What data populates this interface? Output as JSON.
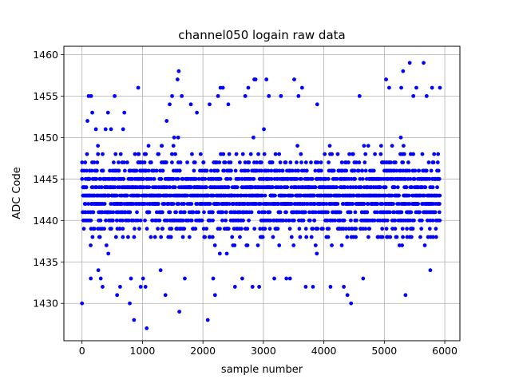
{
  "chart_data": {
    "type": "scatter",
    "title": "channel050 logain raw data",
    "xlabel": "sample number",
    "ylabel": "ADC Code",
    "xlim": [
      -300,
      6250
    ],
    "ylim": [
      1425.5,
      1461
    ],
    "xticks": [
      0,
      1000,
      2000,
      3000,
      4000,
      5000,
      6000
    ],
    "yticks": [
      1430,
      1435,
      1440,
      1445,
      1450,
      1455,
      1460
    ],
    "grid": true,
    "marker_color": "#0000ff",
    "series": [
      {
        "name": "",
        "n_points": 5920,
        "x_range": [
          0,
          5919
        ],
        "core_y_range": [
          1436,
          1450
        ],
        "points": [
          {
            "x": 0,
            "y": 1430
          },
          {
            "x": 30,
            "y": 1439
          },
          {
            "x": 90,
            "y": 1452
          },
          {
            "x": 110,
            "y": 1455
          },
          {
            "x": 145,
            "y": 1433
          },
          {
            "x": 150,
            "y": 1455
          },
          {
            "x": 170,
            "y": 1453
          },
          {
            "x": 230,
            "y": 1451
          },
          {
            "x": 270,
            "y": 1434
          },
          {
            "x": 310,
            "y": 1433
          },
          {
            "x": 340,
            "y": 1432
          },
          {
            "x": 390,
            "y": 1451
          },
          {
            "x": 430,
            "y": 1453
          },
          {
            "x": 480,
            "y": 1451
          },
          {
            "x": 540,
            "y": 1455
          },
          {
            "x": 580,
            "y": 1431
          },
          {
            "x": 630,
            "y": 1432
          },
          {
            "x": 680,
            "y": 1451
          },
          {
            "x": 700,
            "y": 1453
          },
          {
            "x": 790,
            "y": 1430
          },
          {
            "x": 810,
            "y": 1433
          },
          {
            "x": 860,
            "y": 1428
          },
          {
            "x": 930,
            "y": 1456
          },
          {
            "x": 970,
            "y": 1432
          },
          {
            "x": 1010,
            "y": 1433
          },
          {
            "x": 1050,
            "y": 1432
          },
          {
            "x": 1070,
            "y": 1427
          },
          {
            "x": 1100,
            "y": 1449
          },
          {
            "x": 1300,
            "y": 1434
          },
          {
            "x": 1380,
            "y": 1431
          },
          {
            "x": 1400,
            "y": 1452
          },
          {
            "x": 1450,
            "y": 1454
          },
          {
            "x": 1490,
            "y": 1455
          },
          {
            "x": 1580,
            "y": 1457
          },
          {
            "x": 1600,
            "y": 1458
          },
          {
            "x": 1610,
            "y": 1429
          },
          {
            "x": 1650,
            "y": 1455
          },
          {
            "x": 1700,
            "y": 1433
          },
          {
            "x": 1800,
            "y": 1454
          },
          {
            "x": 1900,
            "y": 1453
          },
          {
            "x": 2080,
            "y": 1428
          },
          {
            "x": 2110,
            "y": 1454
          },
          {
            "x": 2170,
            "y": 1433
          },
          {
            "x": 2200,
            "y": 1431
          },
          {
            "x": 2250,
            "y": 1455
          },
          {
            "x": 2290,
            "y": 1456
          },
          {
            "x": 2330,
            "y": 1456
          },
          {
            "x": 2420,
            "y": 1454
          },
          {
            "x": 2530,
            "y": 1432
          },
          {
            "x": 2650,
            "y": 1433
          },
          {
            "x": 2700,
            "y": 1455
          },
          {
            "x": 2750,
            "y": 1456
          },
          {
            "x": 2820,
            "y": 1432
          },
          {
            "x": 2850,
            "y": 1457
          },
          {
            "x": 2870,
            "y": 1457
          },
          {
            "x": 2930,
            "y": 1432
          },
          {
            "x": 3050,
            "y": 1457
          },
          {
            "x": 3090,
            "y": 1455
          },
          {
            "x": 3180,
            "y": 1433
          },
          {
            "x": 3290,
            "y": 1455
          },
          {
            "x": 3380,
            "y": 1433
          },
          {
            "x": 3440,
            "y": 1433
          },
          {
            "x": 3510,
            "y": 1457
          },
          {
            "x": 3580,
            "y": 1455
          },
          {
            "x": 3640,
            "y": 1456
          },
          {
            "x": 3700,
            "y": 1432
          },
          {
            "x": 3820,
            "y": 1432
          },
          {
            "x": 3890,
            "y": 1454
          },
          {
            "x": 4110,
            "y": 1432
          },
          {
            "x": 4330,
            "y": 1432
          },
          {
            "x": 4390,
            "y": 1431
          },
          {
            "x": 4450,
            "y": 1430
          },
          {
            "x": 4590,
            "y": 1455
          },
          {
            "x": 4650,
            "y": 1433
          },
          {
            "x": 5030,
            "y": 1457
          },
          {
            "x": 5080,
            "y": 1456
          },
          {
            "x": 5280,
            "y": 1456
          },
          {
            "x": 5310,
            "y": 1458
          },
          {
            "x": 5350,
            "y": 1431
          },
          {
            "x": 5420,
            "y": 1459
          },
          {
            "x": 5480,
            "y": 1455
          },
          {
            "x": 5530,
            "y": 1456
          },
          {
            "x": 5650,
            "y": 1459
          },
          {
            "x": 5700,
            "y": 1455
          },
          {
            "x": 5760,
            "y": 1434
          },
          {
            "x": 5790,
            "y": 1456
          },
          {
            "x": 5920,
            "y": 1456
          }
        ]
      }
    ]
  }
}
